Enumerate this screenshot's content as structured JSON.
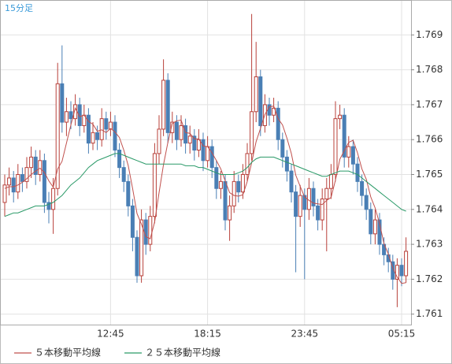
{
  "chart_data": {
    "type": "candlestick",
    "label": "15分足",
    "categories": [
      null,
      null,
      null,
      null,
      null,
      null,
      null,
      null,
      null,
      null,
      null,
      null,
      null,
      null,
      null,
      null,
      null,
      null,
      null,
      null,
      null,
      null,
      null,
      null,
      "12:45",
      null,
      null,
      null,
      null,
      null,
      null,
      null,
      null,
      null,
      null,
      null,
      null,
      null,
      null,
      null,
      null,
      null,
      null,
      null,
      null,
      null,
      "18:15",
      null,
      null,
      null,
      null,
      null,
      null,
      null,
      null,
      null,
      null,
      null,
      null,
      null,
      null,
      null,
      null,
      null,
      null,
      null,
      null,
      null,
      "23:45",
      null,
      null,
      null,
      null,
      null,
      null,
      null,
      null,
      null,
      null,
      null,
      null,
      null,
      null,
      null,
      null,
      null,
      null,
      null,
      null,
      null,
      "05:15",
      null
    ],
    "open": [
      1.7642,
      1.7647,
      1.7649,
      1.7645,
      1.765,
      1.7648,
      1.7652,
      1.7655,
      1.765,
      1.7654,
      1.7642,
      1.764,
      1.7646,
      1.7676,
      1.7665,
      1.7668,
      1.7666,
      1.767,
      1.7664,
      1.7667,
      1.7659,
      1.7662,
      1.766,
      1.7666,
      1.7663,
      1.7665,
      1.7657,
      1.7652,
      1.7648,
      1.7641,
      1.7632,
      1.7621,
      1.7637,
      1.763,
      1.7638,
      1.7656,
      1.7663,
      1.7677,
      1.7662,
      1.7665,
      1.766,
      1.7664,
      1.7659,
      1.7661,
      1.7657,
      1.766,
      1.7654,
      1.7658,
      1.7652,
      1.7646,
      1.7648,
      1.7637,
      1.7641,
      1.7648,
      1.7645,
      1.765,
      1.7656,
      1.7668,
      1.7678,
      1.7664,
      1.767,
      1.7667,
      1.7669,
      1.766,
      1.7655,
      1.7651,
      1.7645,
      1.7638,
      1.7644,
      1.764,
      1.7646,
      1.7641,
      1.7637,
      1.7643,
      1.7646,
      1.765,
      1.7666,
      1.7667,
      1.7655,
      1.7658,
      1.7653,
      1.7648,
      1.7644,
      1.764,
      1.7633,
      1.7637,
      1.763,
      1.7627,
      1.7625,
      1.762,
      1.7624,
      1.7621
    ],
    "high": [
      1.765,
      1.7652,
      1.7651,
      1.7653,
      1.7652,
      1.7655,
      1.7658,
      1.7657,
      1.7657,
      1.7656,
      1.7645,
      1.7649,
      1.7682,
      1.7687,
      1.7672,
      1.7671,
      1.7673,
      1.7672,
      1.767,
      1.7669,
      1.7665,
      1.7664,
      1.7669,
      1.7668,
      1.7668,
      1.7667,
      1.7659,
      1.7654,
      1.765,
      1.7643,
      1.7634,
      1.764,
      1.7639,
      1.7641,
      1.7659,
      1.7667,
      1.7683,
      1.7679,
      1.7668,
      1.7667,
      1.7667,
      1.7666,
      1.7664,
      1.7663,
      1.7663,
      1.7662,
      1.7661,
      1.766,
      1.7654,
      1.7651,
      1.765,
      1.7644,
      1.7651,
      1.765,
      1.7653,
      1.7659,
      1.7696,
      1.7688,
      1.768,
      1.7673,
      1.7672,
      1.7672,
      1.7671,
      1.7662,
      1.7657,
      1.7653,
      1.7647,
      1.7647,
      1.7646,
      1.7649,
      1.7648,
      1.7643,
      1.7646,
      1.7649,
      1.7653,
      1.7671,
      1.767,
      1.7669,
      1.7661,
      1.766,
      1.7655,
      1.765,
      1.7646,
      1.7642,
      1.764,
      1.7639,
      1.7632,
      1.7629,
      1.7627,
      1.7626,
      1.7626,
      1.7632
    ],
    "low": [
      1.7638,
      1.7644,
      1.7642,
      1.7643,
      1.7645,
      1.7646,
      1.7649,
      1.7647,
      1.7648,
      1.7639,
      1.7636,
      1.7633,
      1.7644,
      1.7662,
      1.7661,
      1.7663,
      1.7664,
      1.7661,
      1.7662,
      1.7656,
      1.7657,
      1.7657,
      1.7658,
      1.766,
      1.7661,
      1.7655,
      1.7649,
      1.7645,
      1.7638,
      1.7628,
      1.7619,
      1.7619,
      1.7627,
      1.7628,
      1.7636,
      1.7653,
      1.7661,
      1.7659,
      1.7659,
      1.7657,
      1.7658,
      1.7656,
      1.7656,
      1.7654,
      1.7655,
      1.7651,
      1.7652,
      1.7649,
      1.7643,
      1.7643,
      1.7634,
      1.7631,
      1.7639,
      1.7642,
      1.7643,
      1.7648,
      1.7654,
      1.7665,
      1.7661,
      1.7662,
      1.7664,
      1.7665,
      1.7657,
      1.7652,
      1.7648,
      1.7642,
      1.7622,
      1.7635,
      1.762,
      1.7637,
      1.7638,
      1.7634,
      1.7634,
      1.7628,
      1.7643,
      1.7648,
      1.7663,
      1.7652,
      1.7652,
      1.765,
      1.7645,
      1.7641,
      1.7637,
      1.763,
      1.763,
      1.7627,
      1.7624,
      1.7622,
      1.7617,
      1.7612,
      1.7618,
      1.7619
    ],
    "close": [
      1.7647,
      1.7649,
      1.7645,
      1.765,
      1.7648,
      1.7652,
      1.7655,
      1.765,
      1.7654,
      1.7642,
      1.764,
      1.7646,
      1.7676,
      1.7665,
      1.7668,
      1.7666,
      1.767,
      1.7664,
      1.7667,
      1.7659,
      1.7662,
      1.766,
      1.7666,
      1.7663,
      1.7665,
      1.7657,
      1.7652,
      1.7648,
      1.7641,
      1.7632,
      1.7621,
      1.7637,
      1.763,
      1.7638,
      1.7656,
      1.7663,
      1.7677,
      1.7662,
      1.7665,
      1.766,
      1.7664,
      1.7659,
      1.7661,
      1.7657,
      1.766,
      1.7654,
      1.7658,
      1.7652,
      1.7646,
      1.7648,
      1.7637,
      1.7641,
      1.7648,
      1.7645,
      1.765,
      1.7656,
      1.7668,
      1.7678,
      1.7664,
      1.767,
      1.7667,
      1.7669,
      1.766,
      1.7655,
      1.7651,
      1.7645,
      1.7638,
      1.7644,
      1.764,
      1.7646,
      1.7641,
      1.7637,
      1.7643,
      1.7646,
      1.765,
      1.7666,
      1.7667,
      1.7655,
      1.7658,
      1.7653,
      1.7648,
      1.7644,
      1.764,
      1.7633,
      1.7637,
      1.763,
      1.7627,
      1.7625,
      1.762,
      1.7624,
      1.7621,
      1.7628
    ],
    "up_color": "#b8403a",
    "down_color": "#4a7fb5",
    "series": [
      {
        "name": "５本移動平均線",
        "color": "#c0504d",
        "values": [
          1.7646,
          1.76465,
          1.76465,
          1.7647,
          1.76478,
          1.76488,
          1.765,
          1.7651,
          1.76518,
          1.76506,
          1.76482,
          1.76464,
          1.76516,
          1.76538,
          1.7659,
          1.76642,
          1.7669,
          1.76666,
          1.7667,
          1.76652,
          1.76644,
          1.76624,
          1.76628,
          1.7662,
          1.76632,
          1.76622,
          1.76606,
          1.7657,
          1.76526,
          1.7646,
          1.76388,
          1.76358,
          1.76322,
          1.76316,
          1.76364,
          1.76448,
          1.76528,
          1.76592,
          1.76646,
          1.76654,
          1.76656,
          1.7662,
          1.76618,
          1.76602,
          1.76602,
          1.76582,
          1.7658,
          1.76562,
          1.7654,
          1.76516,
          1.76482,
          1.76448,
          1.7644,
          1.76438,
          1.76442,
          1.7648,
          1.76534,
          1.76594,
          1.76632,
          1.76672,
          1.76694,
          1.76696,
          1.7666,
          1.76642,
          1.76604,
          1.7656,
          1.76498,
          1.76466,
          1.76436,
          1.76426,
          1.76418,
          1.76416,
          1.76414,
          1.76426,
          1.76434,
          1.76484,
          1.76544,
          1.76568,
          1.76592,
          1.76598,
          1.76562,
          1.76516,
          1.76486,
          1.76436,
          1.76404,
          1.7636,
          1.76302,
          1.76272,
          1.76232,
          1.76206,
          1.76188,
          1.7619
        ]
      },
      {
        "name": "２５本移動平均線",
        "color": "#2a9a68",
        "values": [
          1.7638,
          1.76385,
          1.7639,
          1.7639,
          1.76395,
          1.764,
          1.76405,
          1.7641,
          1.7641,
          1.7641,
          1.76415,
          1.7642,
          1.7643,
          1.7644,
          1.76455,
          1.7647,
          1.7648,
          1.7649,
          1.76505,
          1.7652,
          1.7653,
          1.7654,
          1.76545,
          1.7655,
          1.76555,
          1.7656,
          1.7656,
          1.76555,
          1.7655,
          1.76545,
          1.7654,
          1.76535,
          1.7653,
          1.7653,
          1.7653,
          1.7653,
          1.7653,
          1.7653,
          1.7653,
          1.7653,
          1.7653,
          1.76525,
          1.76525,
          1.76525,
          1.7652,
          1.7652,
          1.76515,
          1.7651,
          1.76505,
          1.765,
          1.765,
          1.765,
          1.765,
          1.76505,
          1.7651,
          1.7652,
          1.76535,
          1.76545,
          1.7655,
          1.7655,
          1.7655,
          1.7655,
          1.76545,
          1.7654,
          1.76535,
          1.7653,
          1.76525,
          1.7652,
          1.76515,
          1.7651,
          1.76505,
          1.765,
          1.76495,
          1.76495,
          1.765,
          1.76505,
          1.7651,
          1.7651,
          1.7651,
          1.76505,
          1.765,
          1.7649,
          1.7648,
          1.7647,
          1.7646,
          1.7645,
          1.7644,
          1.7643,
          1.7642,
          1.7641,
          1.764,
          1.76395
        ]
      }
    ],
    "ylim": [
      1.7607,
      1.77
    ],
    "yticks": [
      1.761,
      1.762,
      1.763,
      1.764,
      1.765,
      1.766,
      1.767,
      1.768,
      1.769
    ],
    "grid": true
  }
}
